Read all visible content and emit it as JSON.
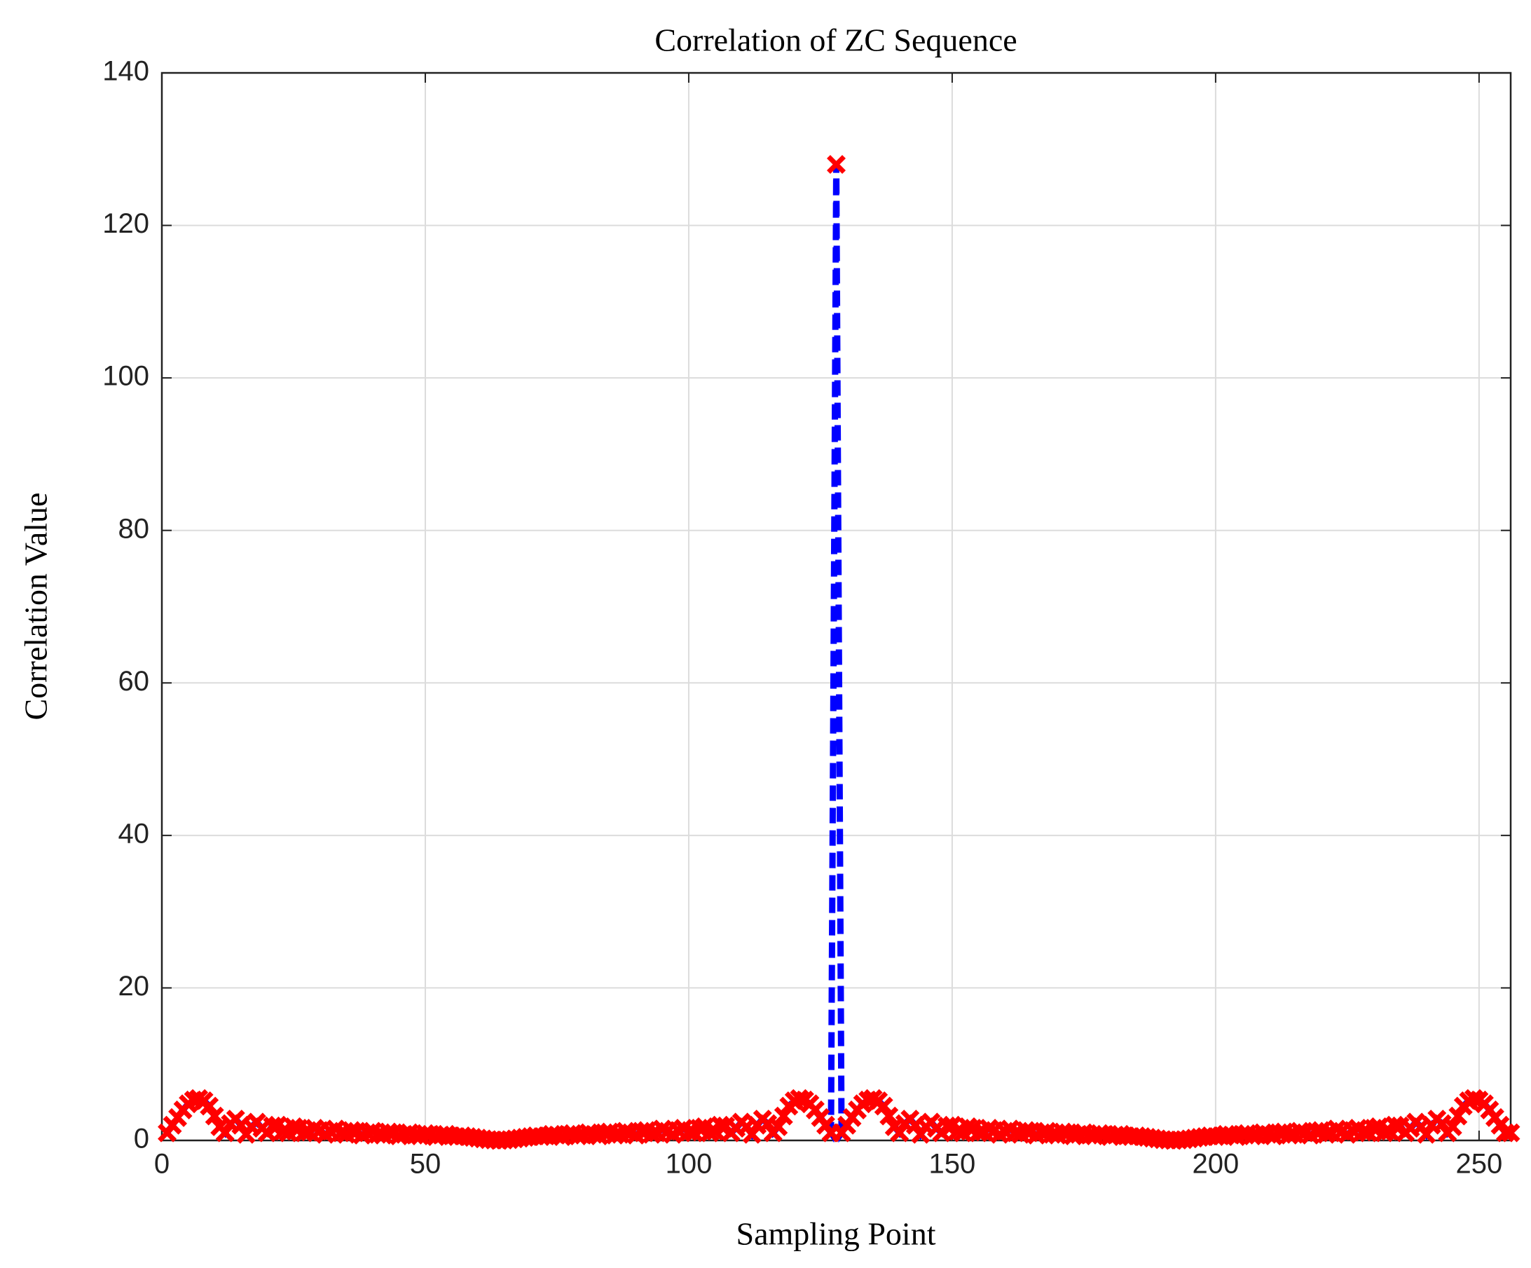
{
  "chart_data": {
    "type": "line",
    "title": "Correlation of ZC Sequence",
    "x_label": "Sampling Point",
    "y_label": "Correlation Value",
    "xlim": [
      0,
      256
    ],
    "xticks": [
      0,
      50,
      100,
      150,
      200,
      250
    ],
    "ylim": [
      0,
      140
    ],
    "yticks": [
      0,
      20,
      40,
      60,
      80,
      100,
      120,
      140
    ],
    "grid": true,
    "x": [
      1,
      2,
      3,
      4,
      5,
      6,
      7,
      8,
      9,
      10,
      11,
      12,
      13,
      14,
      15,
      16,
      17,
      18,
      19,
      20,
      21,
      22,
      23,
      24,
      25,
      26,
      27,
      28,
      29,
      30,
      31,
      32,
      33,
      34,
      35,
      36,
      37,
      38,
      39,
      40,
      41,
      42,
      43,
      44,
      45,
      46,
      47,
      48,
      49,
      50,
      51,
      52,
      53,
      54,
      55,
      56,
      57,
      58,
      59,
      60,
      61,
      62,
      63,
      64,
      65,
      66,
      67,
      68,
      69,
      70,
      71,
      72,
      73,
      74,
      75,
      76,
      77,
      78,
      79,
      80,
      81,
      82,
      83,
      84,
      85,
      86,
      87,
      88,
      89,
      90,
      91,
      92,
      93,
      94,
      95,
      96,
      97,
      98,
      99,
      100,
      101,
      102,
      103,
      104,
      105,
      106,
      107,
      108,
      109,
      110,
      111,
      112,
      113,
      114,
      115,
      116,
      117,
      118,
      119,
      120,
      121,
      122,
      123,
      124,
      125,
      126,
      127,
      128,
      129,
      130,
      131,
      132,
      133,
      134,
      135,
      136,
      137,
      138,
      139,
      140,
      141,
      142,
      143,
      144,
      145,
      146,
      147,
      148,
      149,
      150,
      151,
      152,
      153,
      154,
      155,
      156,
      157,
      158,
      159,
      160,
      161,
      162,
      163,
      164,
      165,
      166,
      167,
      168,
      169,
      170,
      171,
      172,
      173,
      174,
      175,
      176,
      177,
      178,
      179,
      180,
      181,
      182,
      183,
      184,
      185,
      186,
      187,
      188,
      189,
      190,
      191,
      192,
      193,
      194,
      195,
      196,
      197,
      198,
      199,
      200,
      201,
      202,
      203,
      204,
      205,
      206,
      207,
      208,
      209,
      210,
      211,
      212,
      213,
      214,
      215,
      216,
      217,
      218,
      219,
      220,
      221,
      222,
      223,
      224,
      225,
      226,
      227,
      228,
      229,
      230,
      231,
      232,
      233,
      234,
      235,
      236,
      237,
      238,
      239,
      240,
      241,
      242,
      243,
      244,
      245,
      246,
      247,
      248,
      249,
      250,
      251,
      252,
      253,
      254,
      255,
      256
    ],
    "series": [
      {
        "color": "#0000ff",
        "marker_color": "#ff0000",
        "values": [
          1.0,
          2.0,
          3.0,
          4.0,
          4.8,
          5.3,
          5.5,
          5.2,
          4.5,
          3.2,
          1.8,
          1.0,
          2.2,
          2.8,
          2.0,
          0.8,
          1.8,
          2.4,
          1.6,
          1.0,
          1.9,
          2.0,
          1.2,
          1.0,
          1.8,
          1.6,
          1.0,
          1.1,
          1.6,
          1.3,
          0.8,
          1.2,
          1.5,
          1.0,
          0.8,
          1.3,
          1.2,
          0.7,
          1.0,
          1.2,
          0.8,
          0.7,
          1.1,
          1.0,
          0.6,
          0.8,
          1.0,
          0.7,
          0.6,
          0.9,
          0.8,
          0.5,
          0.7,
          0.8,
          0.6,
          0.5,
          0.6,
          0.5,
          0.4,
          0.3,
          0.2,
          0.1,
          0.05,
          0,
          0.05,
          0.1,
          0.2,
          0.3,
          0.4,
          0.5,
          0.6,
          0.5,
          0.6,
          0.8,
          0.7,
          0.5,
          0.8,
          0.9,
          0.6,
          0.7,
          1.0,
          0.8,
          0.6,
          1.0,
          1.1,
          0.7,
          0.8,
          1.2,
          1.0,
          0.7,
          1.2,
          1.3,
          0.8,
          1.0,
          1.5,
          1.2,
          0.8,
          1.3,
          1.6,
          1.1,
          1.0,
          1.6,
          1.8,
          1.0,
          1.2,
          2.0,
          1.9,
          1.0,
          1.6,
          2.4,
          1.8,
          0.8,
          2.0,
          2.8,
          2.2,
          1.0,
          1.8,
          3.2,
          4.5,
          5.2,
          5.5,
          5.3,
          4.8,
          4.0,
          3.0,
          2.0,
          1.0,
          128,
          1.0,
          2.0,
          3.0,
          4.0,
          4.8,
          5.3,
          5.5,
          5.2,
          4.5,
          3.2,
          1.8,
          1.0,
          2.2,
          2.8,
          2.0,
          0.8,
          1.8,
          2.4,
          1.6,
          1.0,
          1.9,
          2.0,
          1.2,
          1.0,
          1.8,
          1.6,
          1.0,
          1.1,
          1.6,
          1.3,
          0.8,
          1.2,
          1.5,
          1.0,
          0.8,
          1.3,
          1.2,
          0.7,
          1.0,
          1.2,
          0.8,
          0.7,
          1.1,
          1.0,
          0.6,
          0.8,
          1.0,
          0.7,
          0.6,
          0.9,
          0.8,
          0.5,
          0.7,
          0.8,
          0.6,
          0.5,
          0.6,
          0.5,
          0.4,
          0.3,
          0.2,
          0.1,
          0.05,
          0,
          0.05,
          0.1,
          0.2,
          0.3,
          0.4,
          0.5,
          0.6,
          0.5,
          0.6,
          0.8,
          0.7,
          0.5,
          0.8,
          0.9,
          0.6,
          0.7,
          1.0,
          0.8,
          0.6,
          1.0,
          1.1,
          0.7,
          0.8,
          1.2,
          1.0,
          0.7,
          1.2,
          1.3,
          0.8,
          1.0,
          1.5,
          1.2,
          0.8,
          1.3,
          1.6,
          1.1,
          1.0,
          1.6,
          1.8,
          1.0,
          1.2,
          2.0,
          1.9,
          1.0,
          1.6,
          2.4,
          1.8,
          0.8,
          2.0,
          2.8,
          2.2,
          1.0,
          1.8,
          3.2,
          4.5,
          5.2,
          5.5,
          5.3,
          4.8,
          4.0,
          3.0,
          2.0,
          1.0,
          1.0
        ]
      }
    ]
  }
}
